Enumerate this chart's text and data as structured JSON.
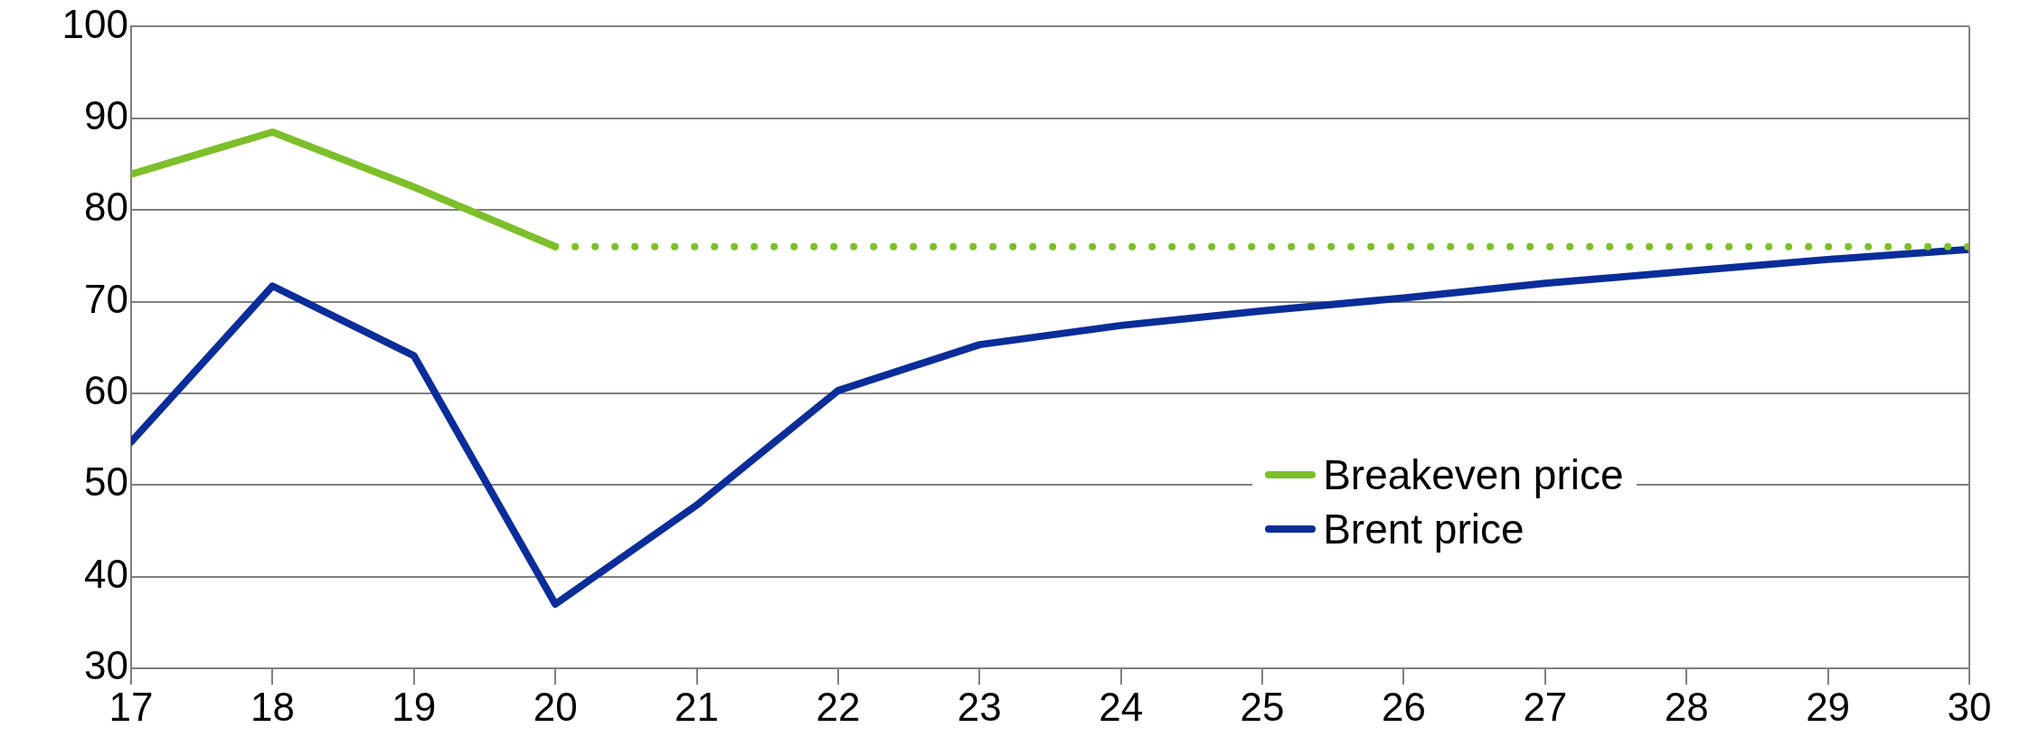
{
  "chart_data": {
    "type": "line",
    "x": [
      17,
      18,
      19,
      20,
      21,
      22,
      23,
      24,
      25,
      26,
      27,
      28,
      29,
      30
    ],
    "xlim": [
      17,
      30
    ],
    "xticks": [
      17,
      18,
      19,
      20,
      21,
      22,
      23,
      24,
      25,
      26,
      27,
      28,
      29,
      30
    ],
    "ylim": [
      30,
      100
    ],
    "yticks": [
      30,
      40,
      50,
      60,
      70,
      80,
      90,
      100
    ],
    "grid": "y",
    "legend": "bottom right",
    "marker": "none",
    "series": [
      {
        "name": "Breakeven price",
        "color": "#7dbf2a",
        "line_style": "solid",
        "x": [
          17,
          18,
          19,
          20
        ],
        "values": [
          83.9,
          88.5,
          82.5,
          76
        ]
      },
      {
        "color": "#7dbf2a",
        "line_style": "dotted",
        "x": [
          20,
          21,
          22,
          23,
          24,
          25,
          26,
          27,
          28,
          29,
          30
        ],
        "values": [
          76,
          76,
          76,
          76,
          76,
          76,
          76,
          76,
          76,
          76,
          76
        ]
      },
      {
        "name": "Brent price",
        "color": "#0a2d9a",
        "line_style": "solid",
        "values": [
          54.7,
          71.7,
          64.1,
          37,
          47.8,
          60.3,
          65.3,
          67.4,
          69,
          70.4,
          72,
          73.3,
          74.6,
          75.7
        ]
      }
    ]
  }
}
